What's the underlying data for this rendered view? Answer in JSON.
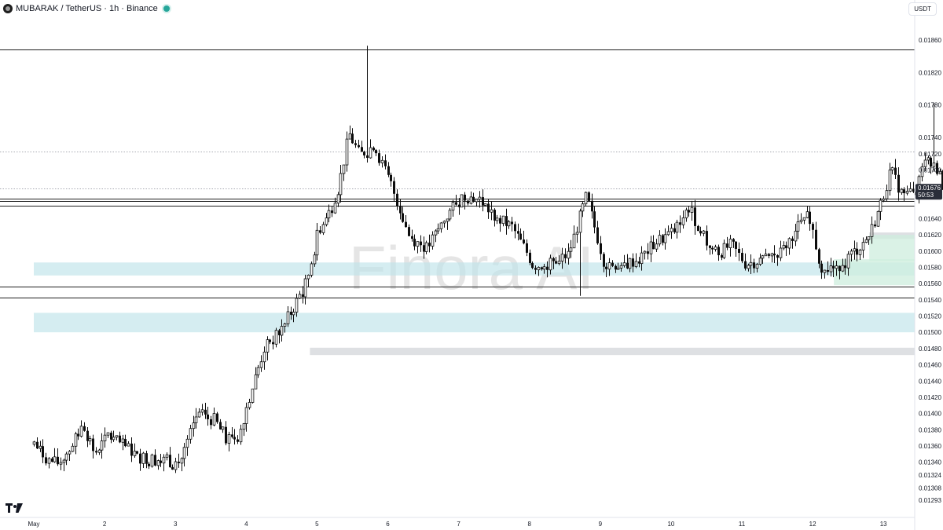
{
  "header": {
    "symbol_title": "MUBARAK / TetherUS · 1h · Binance",
    "currency_button": "USDT",
    "watermark": "Finora AI"
  },
  "colors": {
    "up": "#0d0d0d",
    "down": "#0d0d0d",
    "zone_blue": "#bfe3ea",
    "zone_green": "#cdeede",
    "zone_gray": "#d3d5da",
    "line": "#1e1e1e",
    "price_label_bg": "#2a2e39"
  },
  "chart_data": {
    "type": "candlestick",
    "x_labels": [
      "May",
      "2",
      "3",
      "4",
      "5",
      "6",
      "7",
      "8",
      "9",
      "10",
      "11",
      "12",
      "13"
    ],
    "y_ticks": [
      0.0186,
      0.0182,
      0.0178,
      0.0174,
      0.0172,
      0.017,
      0.0164,
      0.0162,
      0.016,
      0.0158,
      0.0156,
      0.0154,
      0.0152,
      0.015,
      0.0148,
      0.0146,
      0.0144,
      0.0142,
      0.014,
      0.0138,
      0.0136,
      0.0134,
      0.01324,
      0.01308,
      0.01293
    ],
    "y_tick_labels": [
      "0.01860",
      "0.01820",
      "0.01780",
      "0.01740",
      "0.01720",
      "0.01700",
      "0.01640",
      "0.01620",
      "0.01600",
      "0.01580",
      "0.01560",
      "0.01540",
      "0.01520",
      "0.01500",
      "0.01480",
      "0.01460",
      "0.01440",
      "0.01420",
      "0.01400",
      "0.01380",
      "0.01360",
      "0.01340",
      "0.01324",
      "0.01308",
      "0.01293"
    ],
    "current_price": {
      "value": 0.01676,
      "label": "0.01676",
      "countdown": "50:53"
    },
    "price_path_days": [
      [
        0.0,
        0.01362
      ],
      [
        0.2,
        0.01342
      ],
      [
        0.35,
        0.01338
      ],
      [
        0.5,
        0.01356
      ],
      [
        0.7,
        0.01385
      ],
      [
        0.85,
        0.0135
      ],
      [
        1.05,
        0.01372
      ],
      [
        1.3,
        0.01358
      ],
      [
        1.5,
        0.01346
      ],
      [
        1.8,
        0.01343
      ],
      [
        2.05,
        0.01338
      ],
      [
        2.3,
        0.01397
      ],
      [
        2.55,
        0.01392
      ],
      [
        2.7,
        0.01368
      ],
      [
        2.9,
        0.01377
      ],
      [
        3.0,
        0.01408
      ],
      [
        3.25,
        0.0148
      ],
      [
        3.45,
        0.01498
      ],
      [
        3.65,
        0.01528
      ],
      [
        3.85,
        0.01562
      ],
      [
        4.0,
        0.01618
      ],
      [
        4.15,
        0.01645
      ],
      [
        4.3,
        0.01678
      ],
      [
        4.45,
        0.01745
      ],
      [
        4.6,
        0.01718
      ],
      [
        4.8,
        0.0173
      ],
      [
        5.05,
        0.0168
      ],
      [
        5.3,
        0.01618
      ],
      [
        5.55,
        0.01603
      ],
      [
        5.8,
        0.0164
      ],
      [
        6.05,
        0.01668
      ],
      [
        6.3,
        0.01663
      ],
      [
        6.5,
        0.01642
      ],
      [
        6.75,
        0.0163
      ],
      [
        6.95,
        0.016
      ],
      [
        7.05,
        0.01582
      ],
      [
        7.3,
        0.01584
      ],
      [
        7.55,
        0.01596
      ],
      [
        7.8,
        0.01668
      ],
      [
        8.05,
        0.01586
      ],
      [
        8.3,
        0.01582
      ],
      [
        8.55,
        0.0159
      ],
      [
        8.8,
        0.01612
      ],
      [
        9.05,
        0.01625
      ],
      [
        9.25,
        0.01655
      ],
      [
        9.45,
        0.01615
      ],
      [
        9.65,
        0.01596
      ],
      [
        9.85,
        0.01608
      ],
      [
        10.05,
        0.01584
      ],
      [
        10.3,
        0.0159
      ],
      [
        10.55,
        0.01598
      ],
      [
        10.75,
        0.01625
      ],
      [
        10.95,
        0.01645
      ],
      [
        11.1,
        0.01582
      ],
      [
        11.3,
        0.01577
      ],
      [
        11.5,
        0.01593
      ],
      [
        11.65,
        0.01604
      ],
      [
        11.8,
        0.0162
      ],
      [
        11.95,
        0.01655
      ],
      [
        12.1,
        0.017
      ],
      [
        12.25,
        0.01672
      ],
      [
        12.45,
        0.01668
      ],
      [
        12.6,
        0.0172
      ],
      [
        12.75,
        0.01702
      ],
      [
        12.85,
        0.0168
      ],
      [
        12.95,
        0.01676
      ]
    ],
    "spike_highs": [
      {
        "day": 4.72,
        "price": 0.01853
      },
      {
        "day": 12.72,
        "price": 0.01782
      },
      {
        "day": 7.72,
        "price": 0.01545
      }
    ],
    "horizontal_lines": [
      0.01848,
      0.01665,
      0.01662,
      0.01656,
      0.01556,
      0.01543
    ],
    "dotted_lines": [
      0.01723,
      0.01677
    ],
    "zones": [
      {
        "from_day": 0.0,
        "to_day": 13.3,
        "low": 0.0157,
        "high": 0.01586,
        "color": "blue"
      },
      {
        "from_day": 0.0,
        "to_day": 13.3,
        "low": 0.015,
        "high": 0.01524,
        "color": "blue"
      },
      {
        "from_day": 3.9,
        "to_day": 13.3,
        "low": 0.01472,
        "high": 0.01481,
        "color": "gray"
      },
      {
        "from_day": 12.8,
        "to_day": 13.3,
        "low": 0.01702,
        "high": 0.01712,
        "color": "gray"
      },
      {
        "from_day": 11.8,
        "to_day": 13.3,
        "low": 0.01615,
        "high": 0.01623,
        "color": "gray"
      },
      {
        "from_day": 11.8,
        "to_day": 13.3,
        "low": 0.01588,
        "high": 0.0162,
        "color": "green"
      },
      {
        "from_day": 11.3,
        "to_day": 13.3,
        "low": 0.01558,
        "high": 0.0159,
        "color": "green"
      },
      {
        "from_day": 12.5,
        "to_day": 13.3,
        "low": 0.0165,
        "high": 0.01678,
        "color": "green"
      }
    ]
  }
}
